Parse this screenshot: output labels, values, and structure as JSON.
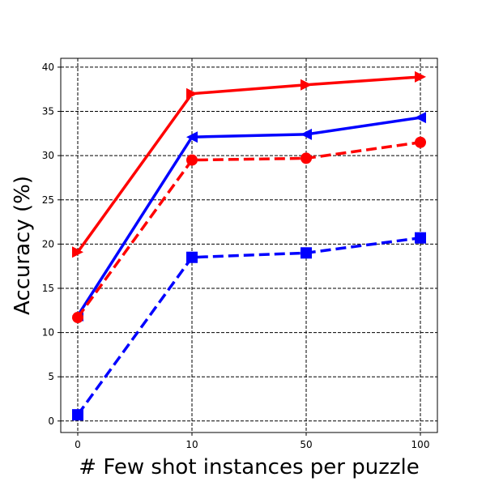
{
  "chart_data": {
    "type": "line",
    "title": "",
    "xlabel": "# Few shot instances per puzzle",
    "ylabel": "Accuracy (%)",
    "categories": [
      "0",
      "10",
      "50",
      "100"
    ],
    "ylim": [
      -1.3,
      41
    ],
    "yticks": [
      0,
      5,
      10,
      15,
      20,
      25,
      30,
      35,
      40
    ],
    "grid": true,
    "legend": "none",
    "series": [
      {
        "color": "#ff0000",
        "line": "solid",
        "marker": "triangle-right",
        "values": [
          19.1,
          37.0,
          38.0,
          38.9
        ]
      },
      {
        "color": "#0000ff",
        "line": "solid",
        "marker": "triangle-left",
        "values": [
          11.9,
          32.1,
          32.4,
          34.3
        ]
      },
      {
        "color": "#ff0000",
        "line": "dashed",
        "marker": "circle",
        "values": [
          11.7,
          29.5,
          29.7,
          31.5
        ]
      },
      {
        "color": "#0000ff",
        "line": "dashed",
        "marker": "square",
        "values": [
          0.7,
          18.5,
          19.0,
          20.7
        ]
      }
    ]
  }
}
